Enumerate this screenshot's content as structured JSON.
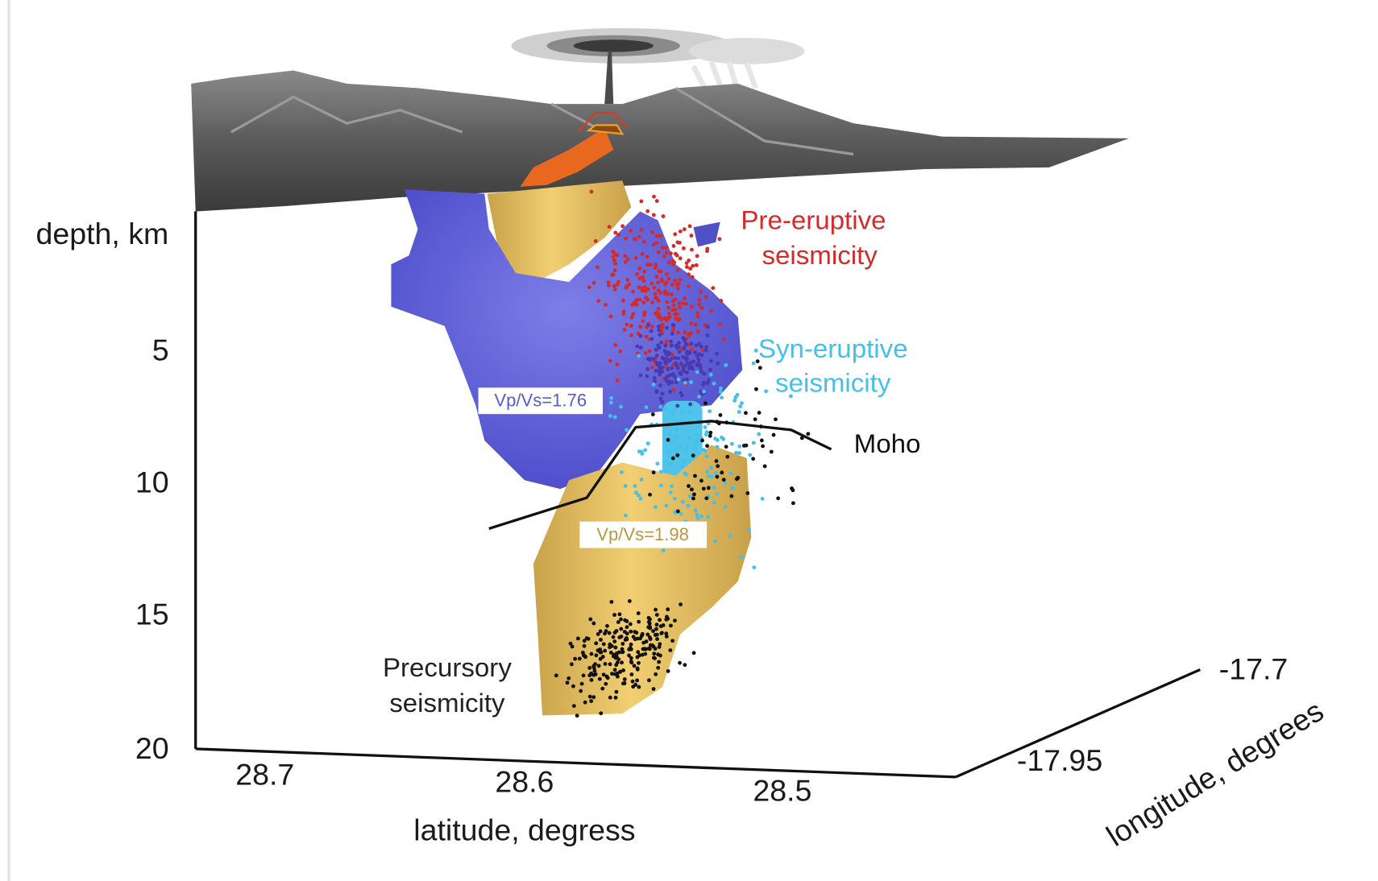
{
  "axes": {
    "depth": {
      "label": "depth, km",
      "ticks": [
        "5",
        "10",
        "15",
        "20"
      ]
    },
    "latitude": {
      "label": "latitude, degress",
      "ticks": [
        "28.7",
        "28.6",
        "28.5"
      ]
    },
    "longitude": {
      "label": "longitude, degrees",
      "ticks": [
        "-17.95",
        "-17.7"
      ]
    }
  },
  "annotations": {
    "pre_eruptive": [
      "Pre-eruptive",
      "seismicity"
    ],
    "syn_eruptive": [
      "Syn-eruptive",
      "seismicity"
    ],
    "precursory": [
      "Precursory",
      "seismicity"
    ],
    "moho": "Moho",
    "vpvs_upper": "Vp/Vs=1.76",
    "vpvs_lower": "Vp/Vs=1.98"
  }
}
